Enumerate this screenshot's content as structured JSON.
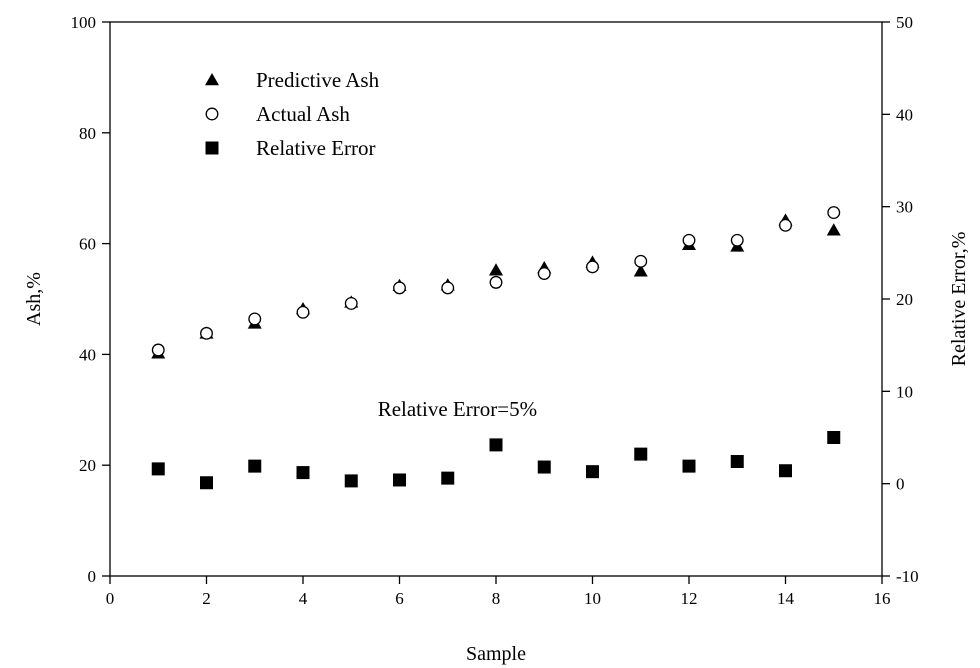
{
  "chart_data": {
    "type": "scatter",
    "xlabel": "Sample",
    "ylabel": "Ash,%",
    "y2label": "Relative Error,%",
    "xlim": [
      0,
      16
    ],
    "ylim": [
      0,
      100
    ],
    "y2lim": [
      -10,
      50
    ],
    "xticks": [
      0,
      2,
      4,
      6,
      8,
      10,
      12,
      14,
      16
    ],
    "yticks": [
      0,
      20,
      40,
      60,
      80,
      100
    ],
    "y2ticks": [
      -10,
      0,
      10,
      20,
      30,
      40,
      50
    ],
    "grid": false,
    "legend_position": "top-left",
    "annotation": "Relative Error=5%",
    "series": [
      {
        "name": "Predictive Ash",
        "axis": "left",
        "marker": "filled-triangle",
        "x": [
          1,
          2,
          3,
          4,
          5,
          6,
          7,
          8,
          9,
          10,
          11,
          12,
          13,
          14,
          15
        ],
        "y": [
          40.2,
          43.8,
          45.6,
          48.2,
          49.4,
          52.4,
          52.5,
          55.2,
          55.6,
          56.6,
          55.0,
          59.8,
          59.5,
          64.2,
          62.4
        ]
      },
      {
        "name": "Actual Ash",
        "axis": "left",
        "marker": "open-circle",
        "x": [
          1,
          2,
          3,
          4,
          5,
          6,
          7,
          8,
          9,
          10,
          11,
          12,
          13,
          14,
          15
        ],
        "y": [
          40.8,
          43.8,
          46.4,
          47.6,
          49.2,
          52.0,
          52.0,
          53.0,
          54.6,
          55.8,
          56.8,
          60.6,
          60.6,
          63.3,
          65.6
        ]
      },
      {
        "name": "Relative Error",
        "axis": "right",
        "marker": "filled-square",
        "x": [
          1,
          2,
          3,
          4,
          5,
          6,
          7,
          8,
          9,
          10,
          11,
          12,
          13,
          14,
          15
        ],
        "y": [
          1.6,
          0.1,
          1.9,
          1.2,
          0.3,
          0.4,
          0.6,
          4.2,
          1.8,
          1.3,
          3.2,
          1.9,
          2.4,
          1.4,
          5.0
        ]
      }
    ]
  }
}
